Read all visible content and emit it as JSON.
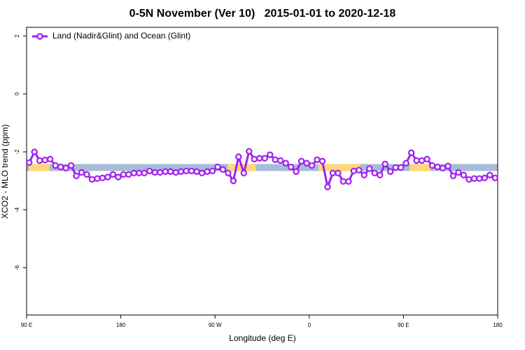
{
  "chart_data": {
    "type": "line",
    "title": "0-5N November (Ver 10)   2015-01-01 to 2020-12-18",
    "xlabel": "Longitude (deg E)",
    "ylabel": "XCO2 - MLO trend (ppm)",
    "xlim": [
      90,
      540
    ],
    "xticks": [
      {
        "value": 90,
        "label": "90 E"
      },
      {
        "value": 180,
        "label": "180"
      },
      {
        "value": 270,
        "label": "90 W"
      },
      {
        "value": 360,
        "label": "0"
      },
      {
        "value": 450,
        "label": "90 E"
      },
      {
        "value": 540,
        "label": "180"
      }
    ],
    "ylim": [
      -7.63,
      2.3
    ],
    "yticks": [
      2,
      0,
      -2,
      -4,
      -6
    ],
    "legend": "top-left",
    "band": {
      "range": [
        -2.66,
        -2.42
      ],
      "color": "#a7bcd8",
      "highlight_color": "#ffd77a",
      "highlights": [
        [
          92,
          112
        ],
        [
          282,
          309
        ],
        [
          369,
          409
        ],
        [
          456,
          476
        ]
      ]
    },
    "x": [
      92.5,
      97.5,
      102.5,
      107.5,
      112.5,
      117.5,
      122.5,
      127.5,
      132.5,
      137.5,
      142.5,
      147.5,
      152.5,
      157.5,
      162.5,
      167.5,
      172.5,
      177.5,
      182.5,
      187.5,
      192.5,
      197.5,
      202.5,
      207.5,
      212.5,
      217.5,
      222.5,
      227.5,
      232.5,
      237.5,
      242.5,
      247.5,
      252.5,
      257.5,
      262.5,
      267.5,
      272.5,
      277.5,
      282.5,
      287.5,
      292.5,
      297.5,
      302.5,
      307.5,
      312.5,
      317.5,
      322.5,
      327.5,
      332.5,
      337.5,
      342.5,
      347.5,
      352.5,
      357.5,
      362.5,
      367.5,
      372.5,
      377.5,
      382.5,
      387.5,
      392.5,
      397.5,
      402.5,
      407.5,
      412.5,
      417.5,
      422.5,
      427.5,
      432.5,
      437.5,
      442.5,
      447.5,
      452.5,
      457.5,
      462.5,
      467.5,
      472.5,
      477.5,
      482.5,
      487.5,
      492.5,
      497.5,
      502.5,
      507.5,
      512.5,
      517.5,
      522.5,
      527.5,
      532.5,
      537.5
    ],
    "series": [
      {
        "name": "Land (Nadir&Glint) and Ocean (Glint)",
        "color": "#a020f0",
        "values": [
          -2.37,
          -2.0,
          -2.3,
          -2.28,
          -2.25,
          -2.47,
          -2.52,
          -2.56,
          -2.47,
          -2.83,
          -2.71,
          -2.78,
          -2.95,
          -2.92,
          -2.9,
          -2.87,
          -2.78,
          -2.87,
          -2.78,
          -2.78,
          -2.73,
          -2.73,
          -2.73,
          -2.66,
          -2.71,
          -2.71,
          -2.68,
          -2.68,
          -2.71,
          -2.68,
          -2.66,
          -2.66,
          -2.68,
          -2.73,
          -2.68,
          -2.66,
          -2.52,
          -2.61,
          -2.73,
          -3.0,
          -2.17,
          -2.73,
          -1.98,
          -2.25,
          -2.22,
          -2.22,
          -2.1,
          -2.27,
          -2.3,
          -2.39,
          -2.52,
          -2.68,
          -2.32,
          -2.39,
          -2.47,
          -2.27,
          -2.32,
          -3.21,
          -2.73,
          -2.73,
          -3.02,
          -3.02,
          -2.66,
          -2.63,
          -2.8,
          -2.58,
          -2.73,
          -2.8,
          -2.42,
          -2.68,
          -2.54,
          -2.54,
          -2.39,
          -2.03,
          -2.3,
          -2.3,
          -2.25,
          -2.47,
          -2.52,
          -2.56,
          -2.49,
          -2.83,
          -2.71,
          -2.8,
          -2.95,
          -2.92,
          -2.92,
          -2.9,
          -2.8,
          -2.9
        ]
      }
    ]
  }
}
